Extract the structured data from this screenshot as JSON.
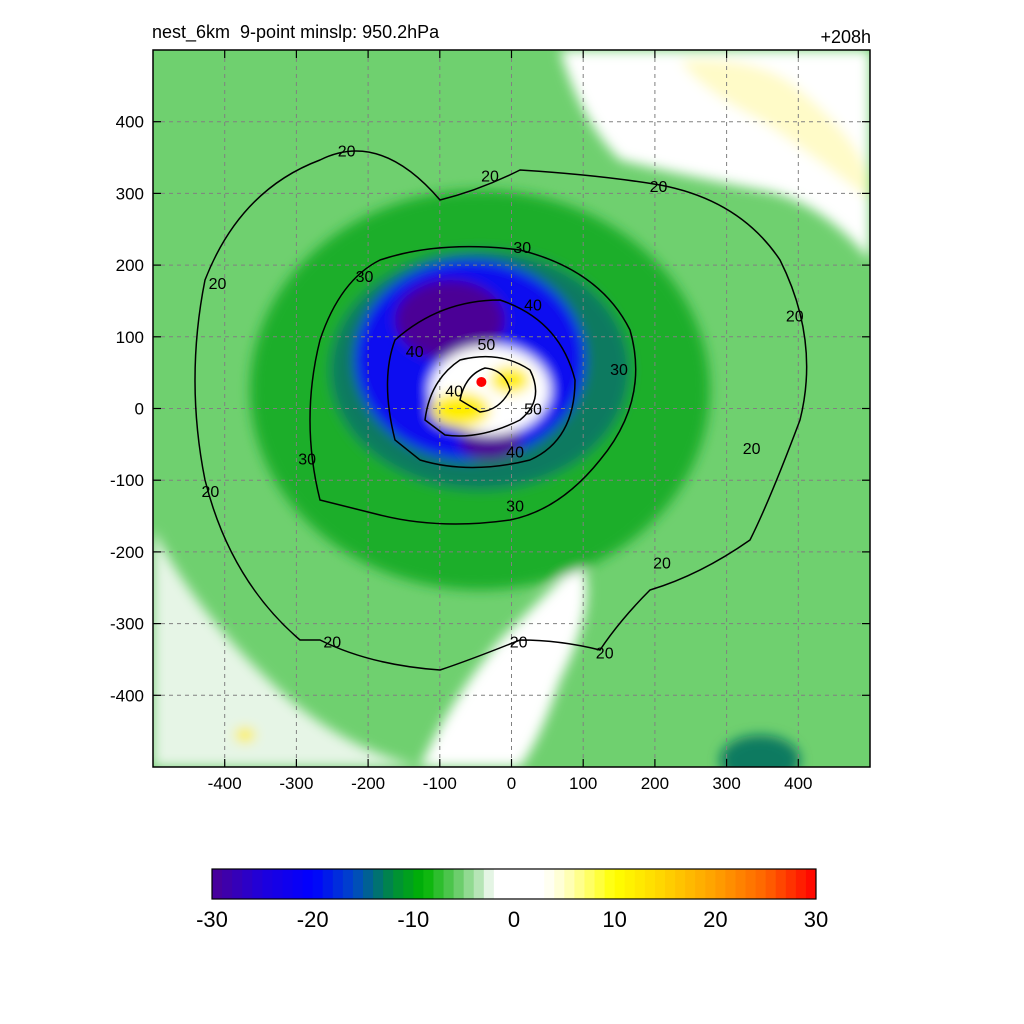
{
  "header": {
    "title": "nest_6km  9-point minslp: 950.2hPa",
    "lead_time": "+208h"
  },
  "chart_data": {
    "type": "heatmap",
    "title": "nest_6km  9-point minslp: 950.2hPa",
    "time_label": "+208h",
    "xlim": [
      -500,
      500
    ],
    "ylim": [
      -500,
      500
    ],
    "x_ticks": [
      -400,
      -300,
      -200,
      -100,
      0,
      100,
      200,
      300,
      400
    ],
    "y_ticks": [
      -400,
      -300,
      -200,
      -100,
      0,
      100,
      200,
      300,
      400
    ],
    "grid": "dashed",
    "colorbar": {
      "range": [
        -30,
        30
      ],
      "tick_values": [
        -30,
        -20,
        -10,
        0,
        10,
        20,
        30
      ],
      "tick_labels": [
        "-30",
        "-20",
        "-10",
        "0",
        "10",
        "20",
        "30"
      ],
      "stops": [
        {
          "value": -30,
          "color": "#4b0096"
        },
        {
          "value": -25,
          "color": "#1e00dc"
        },
        {
          "value": -20,
          "color": "#0000ff"
        },
        {
          "value": -16,
          "color": "#0046c8"
        },
        {
          "value": -12,
          "color": "#008c3c"
        },
        {
          "value": -9,
          "color": "#00b400"
        },
        {
          "value": -6,
          "color": "#5ac85a"
        },
        {
          "value": -3,
          "color": "#c8ebc8"
        },
        {
          "value": -2,
          "color": "#ffffff"
        },
        {
          "value": 3,
          "color": "#ffffff"
        },
        {
          "value": 5,
          "color": "#ffffc8"
        },
        {
          "value": 10,
          "color": "#ffff00"
        },
        {
          "value": 15,
          "color": "#ffd200"
        },
        {
          "value": 20,
          "color": "#ffa000"
        },
        {
          "value": 25,
          "color": "#ff6400"
        },
        {
          "value": 30,
          "color": "#ff0000"
        }
      ]
    },
    "contour_labels": [
      {
        "text": "20",
        "x": -230,
        "y": 360
      },
      {
        "text": "20",
        "x": -30,
        "y": 325
      },
      {
        "text": "20",
        "x": 205,
        "y": 310
      },
      {
        "text": "20",
        "x": -410,
        "y": 175
      },
      {
        "text": "20",
        "x": 395,
        "y": 130
      },
      {
        "text": "20",
        "x": 335,
        "y": -55
      },
      {
        "text": "20",
        "x": -420,
        "y": -115
      },
      {
        "text": "20",
        "x": 210,
        "y": -215
      },
      {
        "text": "20",
        "x": 10,
        "y": -325
      },
      {
        "text": "20",
        "x": -250,
        "y": -325
      },
      {
        "text": "20",
        "x": 130,
        "y": -340
      },
      {
        "text": "30",
        "x": 15,
        "y": 225
      },
      {
        "text": "30",
        "x": -205,
        "y": 185
      },
      {
        "text": "30",
        "x": 150,
        "y": 55
      },
      {
        "text": "30",
        "x": -285,
        "y": -70
      },
      {
        "text": "30",
        "x": 5,
        "y": -135
      },
      {
        "text": "40",
        "x": 30,
        "y": 145
      },
      {
        "text": "40",
        "x": -135,
        "y": 80
      },
      {
        "text": "40",
        "x": 5,
        "y": -60
      },
      {
        "text": "40",
        "x": -80,
        "y": 25
      },
      {
        "text": "50",
        "x": -35,
        "y": 90
      },
      {
        "text": "50",
        "x": 30,
        "y": 0
      }
    ],
    "storm_center": {
      "x": -42,
      "y": 37,
      "color": "#ff0000"
    }
  }
}
